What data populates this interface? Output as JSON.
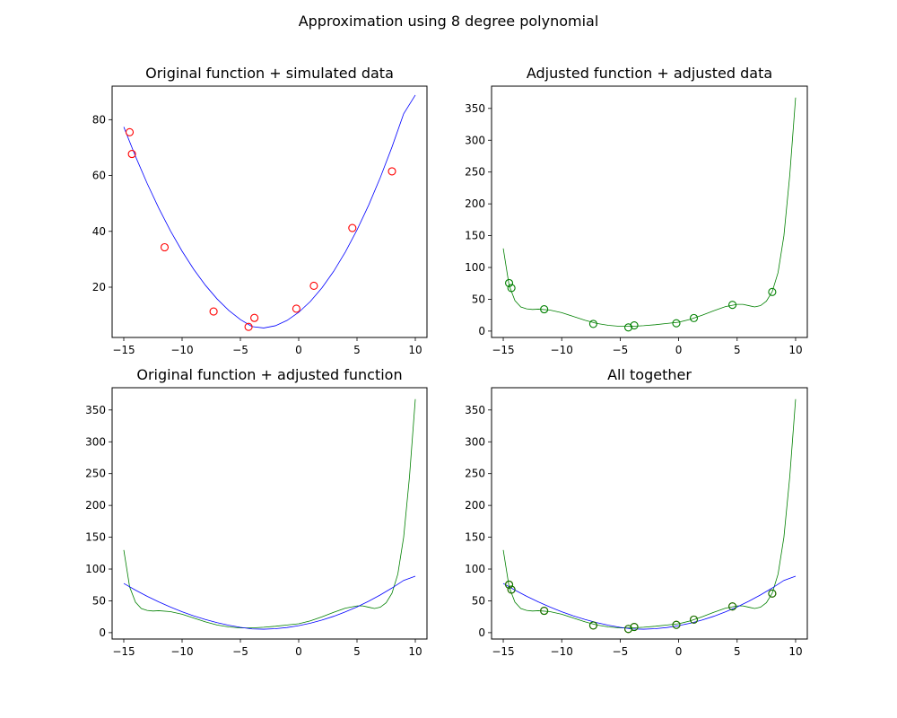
{
  "figure_title": "Approximation using 8 degree polynomial",
  "colors": {
    "original": "#0000ff",
    "adjusted": "#008000",
    "simulated_points": "#ff0000",
    "adjusted_points": "#008000"
  },
  "chart_data": [
    {
      "type": "line",
      "title": "Original function + simulated data",
      "xlim": [
        -16,
        11
      ],
      "ylim": [
        2,
        92
      ],
      "xticks": [
        -15,
        -10,
        -5,
        0,
        5,
        10
      ],
      "xtick_labels": [
        "−15",
        "−10",
        "−5",
        "0",
        "5",
        "10"
      ],
      "yticks": [
        20,
        40,
        60,
        80
      ],
      "ytick_labels": [
        "20",
        "40",
        "60",
        "80"
      ],
      "series": [
        {
          "kind": "line",
          "color": "#0000ff",
          "x": [
            -15,
            -14,
            -13,
            -12,
            -11,
            -10,
            -9,
            -8,
            -7,
            -6,
            -5,
            -4,
            -3,
            -2,
            -1,
            0,
            1,
            2,
            3,
            4,
            5,
            6,
            7,
            8,
            9,
            10
          ],
          "y": [
            77.4,
            66.9,
            57.2,
            48.3,
            40.2,
            32.9,
            26.4,
            20.7,
            15.8,
            11.7,
            8.4,
            5.9,
            5.4,
            6.2,
            8.1,
            11.0,
            14.9,
            19.8,
            25.7,
            32.6,
            40.5,
            49.4,
            59.3,
            70.2,
            82.1,
            88.8
          ]
        },
        {
          "kind": "scatter",
          "marker": "open-circle",
          "color": "#ff0000",
          "x": [
            -14.5,
            -14.3,
            -11.5,
            -7.3,
            -4.3,
            -3.8,
            -0.2,
            1.3,
            4.6,
            8.0
          ],
          "y": [
            75.5,
            67.7,
            34.3,
            11.3,
            5.8,
            9.0,
            12.3,
            20.5,
            41.2,
            61.5
          ]
        }
      ]
    },
    {
      "type": "line",
      "title": "Adjusted function + adjusted data",
      "xlim": [
        -16,
        11
      ],
      "ylim": [
        -10,
        385
      ],
      "xticks": [
        -15,
        -10,
        -5,
        0,
        5,
        10
      ],
      "xtick_labels": [
        "−15",
        "−10",
        "−5",
        "0",
        "5",
        "10"
      ],
      "yticks": [
        0,
        50,
        100,
        150,
        200,
        250,
        300,
        350
      ],
      "ytick_labels": [
        "0",
        "50",
        "100",
        "150",
        "200",
        "250",
        "300",
        "350"
      ],
      "series": [
        {
          "kind": "line",
          "color": "#008000",
          "x": [
            -15,
            -14.5,
            -14,
            -13.5,
            -13,
            -12.5,
            -12,
            -11,
            -10,
            -9,
            -8,
            -7,
            -6,
            -5,
            -4,
            -3,
            -2,
            -1,
            0,
            1,
            2,
            3,
            4,
            5,
            5.5,
            6,
            6.5,
            7,
            7.5,
            8,
            8.5,
            9,
            9.5,
            10
          ],
          "y": [
            130,
            72,
            48,
            38,
            35,
            34,
            34.5,
            33,
            29,
            23,
            17,
            12,
            9,
            7.5,
            7.5,
            8.5,
            10,
            12,
            14,
            18.5,
            25,
            32,
            38.5,
            42,
            42,
            40,
            38,
            40,
            47,
            62,
            92,
            150,
            245,
            367
          ]
        },
        {
          "kind": "scatter",
          "marker": "open-circle",
          "color": "#008000",
          "x": [
            -14.5,
            -14.3,
            -11.5,
            -7.3,
            -4.3,
            -3.8,
            -0.2,
            1.3,
            4.6,
            8.0
          ],
          "y": [
            75.5,
            67.7,
            34.3,
            11.3,
            5.8,
            9.0,
            12.3,
            20.5,
            41.2,
            61.5
          ]
        }
      ]
    },
    {
      "type": "line",
      "title": "Original function + adjusted function",
      "xlim": [
        -16,
        11
      ],
      "ylim": [
        -10,
        385
      ],
      "xticks": [
        -15,
        -10,
        -5,
        0,
        5,
        10
      ],
      "xtick_labels": [
        "−15",
        "−10",
        "−5",
        "0",
        "5",
        "10"
      ],
      "yticks": [
        0,
        50,
        100,
        150,
        200,
        250,
        300,
        350
      ],
      "ytick_labels": [
        "0",
        "50",
        "100",
        "150",
        "200",
        "250",
        "300",
        "350"
      ],
      "series": [
        {
          "kind": "line",
          "color": "#008000",
          "x": [
            -15,
            -14.5,
            -14,
            -13.5,
            -13,
            -12.5,
            -12,
            -11,
            -10,
            -9,
            -8,
            -7,
            -6,
            -5,
            -4,
            -3,
            -2,
            -1,
            0,
            1,
            2,
            3,
            4,
            5,
            5.5,
            6,
            6.5,
            7,
            7.5,
            8,
            8.5,
            9,
            9.5,
            10
          ],
          "y": [
            130,
            72,
            48,
            38,
            35,
            34,
            34.5,
            33,
            29,
            23,
            17,
            12,
            9,
            7.5,
            7.5,
            8.5,
            10,
            12,
            14,
            18.5,
            25,
            32,
            38.5,
            42,
            42,
            40,
            38,
            40,
            47,
            62,
            92,
            150,
            245,
            367
          ]
        },
        {
          "kind": "line",
          "color": "#0000ff",
          "x": [
            -15,
            -14,
            -13,
            -12,
            -11,
            -10,
            -9,
            -8,
            -7,
            -6,
            -5,
            -4,
            -3,
            -2,
            -1,
            0,
            1,
            2,
            3,
            4,
            5,
            6,
            7,
            8,
            9,
            10
          ],
          "y": [
            77.4,
            66.9,
            57.2,
            48.3,
            40.2,
            32.9,
            26.4,
            20.7,
            15.8,
            11.7,
            8.4,
            5.9,
            5.4,
            6.2,
            8.1,
            11.0,
            14.9,
            19.8,
            25.7,
            32.6,
            40.5,
            49.4,
            59.3,
            70.2,
            82.1,
            88.8
          ]
        }
      ]
    },
    {
      "type": "line",
      "title": "All together",
      "xlim": [
        -16,
        11
      ],
      "ylim": [
        -10,
        385
      ],
      "xticks": [
        -15,
        -10,
        -5,
        0,
        5,
        10
      ],
      "xtick_labels": [
        "−15",
        "−10",
        "−5",
        "0",
        "5",
        "10"
      ],
      "yticks": [
        0,
        50,
        100,
        150,
        200,
        250,
        300,
        350
      ],
      "ytick_labels": [
        "0",
        "50",
        "100",
        "150",
        "200",
        "250",
        "300",
        "350"
      ],
      "series": [
        {
          "kind": "line",
          "color": "#008000",
          "x": [
            -15,
            -14.5,
            -14,
            -13.5,
            -13,
            -12.5,
            -12,
            -11,
            -10,
            -9,
            -8,
            -7,
            -6,
            -5,
            -4,
            -3,
            -2,
            -1,
            0,
            1,
            2,
            3,
            4,
            5,
            5.5,
            6,
            6.5,
            7,
            7.5,
            8,
            8.5,
            9,
            9.5,
            10
          ],
          "y": [
            130,
            72,
            48,
            38,
            35,
            34,
            34.5,
            33,
            29,
            23,
            17,
            12,
            9,
            7.5,
            7.5,
            8.5,
            10,
            12,
            14,
            18.5,
            25,
            32,
            38.5,
            42,
            42,
            40,
            38,
            40,
            47,
            62,
            92,
            150,
            245,
            367
          ]
        },
        {
          "kind": "line",
          "color": "#0000ff",
          "x": [
            -15,
            -14,
            -13,
            -12,
            -11,
            -10,
            -9,
            -8,
            -7,
            -6,
            -5,
            -4,
            -3,
            -2,
            -1,
            0,
            1,
            2,
            3,
            4,
            5,
            6,
            7,
            8,
            9,
            10
          ],
          "y": [
            77.4,
            66.9,
            57.2,
            48.3,
            40.2,
            32.9,
            26.4,
            20.7,
            15.8,
            11.7,
            8.4,
            5.9,
            5.4,
            6.2,
            8.1,
            11.0,
            14.9,
            19.8,
            25.7,
            32.6,
            40.5,
            49.4,
            59.3,
            70.2,
            82.1,
            88.8
          ]
        },
        {
          "kind": "scatter",
          "marker": "open-circle",
          "color": "#ff0000",
          "x": [
            -14.5,
            -14.3,
            -11.5,
            -7.3,
            -4.3,
            -3.8,
            -0.2,
            1.3,
            4.6,
            8.0
          ],
          "y": [
            75.5,
            67.7,
            34.3,
            11.3,
            5.8,
            9.0,
            12.3,
            20.5,
            41.2,
            61.5
          ]
        },
        {
          "kind": "scatter",
          "marker": "open-circle",
          "color": "#008000",
          "x": [
            -14.5,
            -14.3,
            -11.5,
            -7.3,
            -4.3,
            -3.8,
            -0.2,
            1.3,
            4.6,
            8.0
          ],
          "y": [
            75.5,
            67.7,
            34.3,
            11.3,
            5.8,
            9.0,
            12.3,
            20.5,
            41.2,
            61.5
          ]
        }
      ]
    }
  ]
}
